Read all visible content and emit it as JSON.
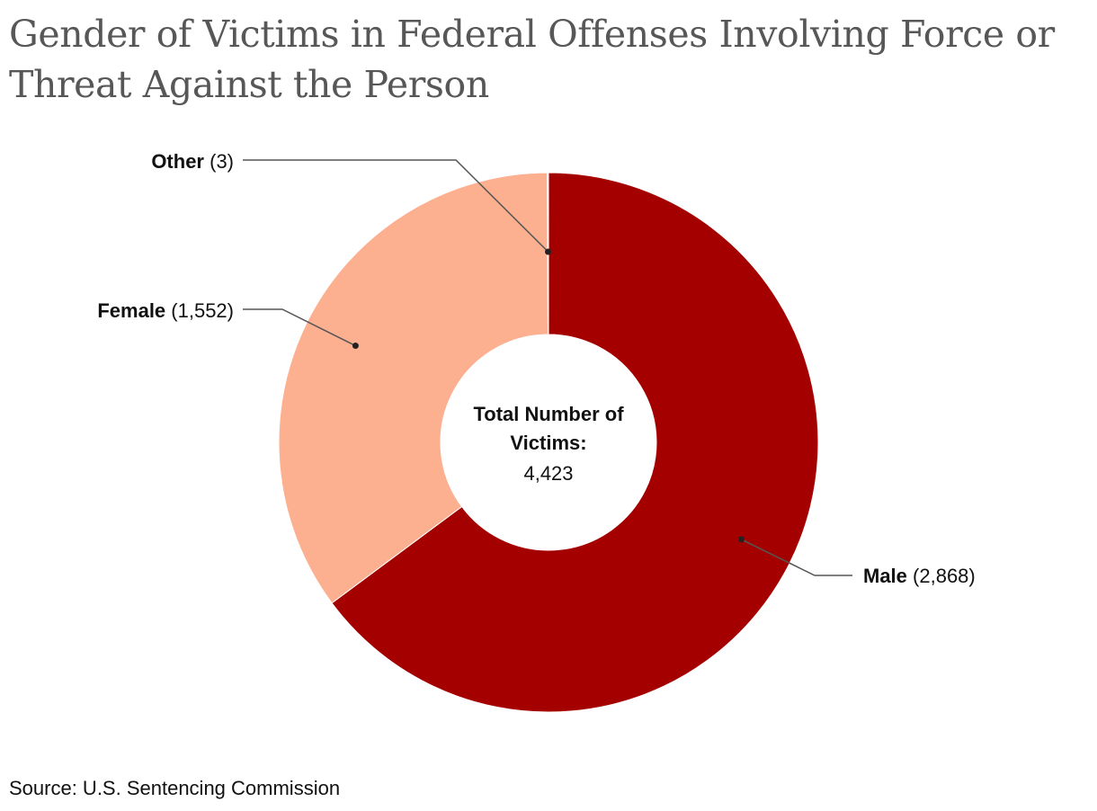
{
  "title": "Gender of Victims in Federal Offenses Involving Force or Threat Against the Person",
  "source": "Source: U.S. Sentencing Commission",
  "center": {
    "label_line1": "Total Number of",
    "label_line2": "Victims:",
    "value": "4,423"
  },
  "colors": {
    "male": "#a50000",
    "female": "#fdb08f",
    "other": "#f4c7b4",
    "title": "#575757",
    "text": "#111111",
    "leader": "#555555"
  },
  "chart_data": {
    "type": "pie",
    "variant": "donut",
    "title": "Gender of Victims in Federal Offenses Involving Force or Threat Against the Person",
    "total": 4423,
    "total_label": "4,423",
    "slices": [
      {
        "key": "male",
        "name": "Male",
        "value": 2868,
        "value_label": "(2,868)",
        "label_side": "right"
      },
      {
        "key": "female",
        "name": "Female",
        "value": 1552,
        "value_label": "(1,552)",
        "label_side": "left"
      },
      {
        "key": "other",
        "name": "Other",
        "value": 3,
        "value_label": "(3)",
        "label_side": "left"
      }
    ]
  }
}
